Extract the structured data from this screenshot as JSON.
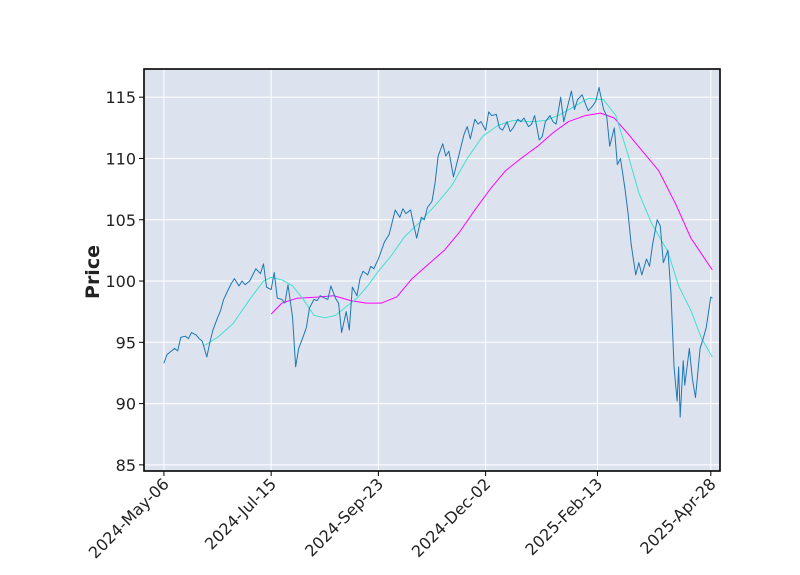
{
  "chart_data": {
    "type": "line",
    "title": "",
    "xlabel": "",
    "ylabel": "Price",
    "ylim": [
      84.5,
      117.3
    ],
    "xlim": [
      "2024-04-23",
      "2025-05-04"
    ],
    "y_ticks": [
      85,
      90,
      95,
      100,
      105,
      110,
      115
    ],
    "x_ticks": [
      {
        "date": "2024-05-06",
        "label": "2024-May-06"
      },
      {
        "date": "2024-07-15",
        "label": "2024-Jul-15"
      },
      {
        "date": "2024-09-23",
        "label": "2024-Sep-23"
      },
      {
        "date": "2024-12-02",
        "label": "2024-Dec-02"
      },
      {
        "date": "2025-02-13",
        "label": "2025-Feb-13"
      },
      {
        "date": "2025-04-28",
        "label": "2025-Apr-28"
      }
    ],
    "grid": true,
    "legend": "none",
    "colors": {
      "background": "#dde3ee",
      "grid": "#ffffff",
      "price": "#1f77b4",
      "ma_short": "#40e0d0",
      "ma_long": "#ff00ff"
    },
    "series": [
      {
        "key": "price",
        "points": [
          [
            "2024-05-06",
            93.3
          ],
          [
            "2024-05-08",
            94.0
          ],
          [
            "2024-05-10",
            94.2
          ],
          [
            "2024-05-13",
            94.5
          ],
          [
            "2024-05-15",
            94.3
          ],
          [
            "2024-05-17",
            95.4
          ],
          [
            "2024-05-20",
            95.5
          ],
          [
            "2024-05-22",
            95.3
          ],
          [
            "2024-05-24",
            95.8
          ],
          [
            "2024-05-27",
            95.6
          ],
          [
            "2024-05-29",
            95.3
          ],
          [
            "2024-05-31",
            95.1
          ],
          [
            "2024-06-03",
            93.8
          ],
          [
            "2024-06-05",
            95.0
          ],
          [
            "2024-06-07",
            96.0
          ],
          [
            "2024-06-10",
            97.0
          ],
          [
            "2024-06-12",
            97.6
          ],
          [
            "2024-06-14",
            98.5
          ],
          [
            "2024-06-17",
            99.3
          ],
          [
            "2024-06-19",
            99.8
          ],
          [
            "2024-06-21",
            100.2
          ],
          [
            "2024-06-24",
            99.6
          ],
          [
            "2024-06-26",
            100.0
          ],
          [
            "2024-06-28",
            99.7
          ],
          [
            "2024-07-01",
            100.0
          ],
          [
            "2024-07-03",
            100.5
          ],
          [
            "2024-07-05",
            101.0
          ],
          [
            "2024-07-08",
            100.6
          ],
          [
            "2024-07-10",
            101.4
          ],
          [
            "2024-07-12",
            99.5
          ],
          [
            "2024-07-15",
            99.3
          ],
          [
            "2024-07-17",
            100.7
          ],
          [
            "2024-07-19",
            98.6
          ],
          [
            "2024-07-22",
            98.5
          ],
          [
            "2024-07-24",
            98.2
          ],
          [
            "2024-07-26",
            99.7
          ],
          [
            "2024-07-29",
            97.0
          ],
          [
            "2024-07-31",
            93.0
          ],
          [
            "2024-08-02",
            94.5
          ],
          [
            "2024-08-05",
            95.5
          ],
          [
            "2024-08-07",
            96.2
          ],
          [
            "2024-08-09",
            97.8
          ],
          [
            "2024-08-12",
            98.5
          ],
          [
            "2024-08-14",
            98.4
          ],
          [
            "2024-08-16",
            98.8
          ],
          [
            "2024-08-19",
            98.6
          ],
          [
            "2024-08-21",
            98.5
          ],
          [
            "2024-08-23",
            99.6
          ],
          [
            "2024-08-26",
            98.6
          ],
          [
            "2024-08-28",
            98.2
          ],
          [
            "2024-08-30",
            95.8
          ],
          [
            "2024-09-02",
            97.5
          ],
          [
            "2024-09-04",
            96.0
          ],
          [
            "2024-09-06",
            99.5
          ],
          [
            "2024-09-09",
            98.8
          ],
          [
            "2024-09-11",
            100.2
          ],
          [
            "2024-09-13",
            100.8
          ],
          [
            "2024-09-16",
            100.5
          ],
          [
            "2024-09-18",
            101.2
          ],
          [
            "2024-09-20",
            101.0
          ],
          [
            "2024-09-23",
            101.8
          ],
          [
            "2024-09-25",
            102.5
          ],
          [
            "2024-09-27",
            103.2
          ],
          [
            "2024-09-30",
            103.8
          ],
          [
            "2024-10-02",
            104.8
          ],
          [
            "2024-10-04",
            105.8
          ],
          [
            "2024-10-07",
            105.2
          ],
          [
            "2024-10-09",
            105.9
          ],
          [
            "2024-10-11",
            105.5
          ],
          [
            "2024-10-14",
            105.8
          ],
          [
            "2024-10-16",
            104.6
          ],
          [
            "2024-10-18",
            103.5
          ],
          [
            "2024-10-21",
            105.2
          ],
          [
            "2024-10-23",
            105.0
          ],
          [
            "2024-10-25",
            106.0
          ],
          [
            "2024-10-28",
            106.5
          ],
          [
            "2024-10-30",
            108.0
          ],
          [
            "2024-11-01",
            110.2
          ],
          [
            "2024-11-04",
            111.2
          ],
          [
            "2024-11-06",
            110.2
          ],
          [
            "2024-11-08",
            110.6
          ],
          [
            "2024-11-11",
            108.5
          ],
          [
            "2024-11-13",
            109.5
          ],
          [
            "2024-11-15",
            110.5
          ],
          [
            "2024-11-18",
            112.0
          ],
          [
            "2024-11-20",
            112.6
          ],
          [
            "2024-11-22",
            111.6
          ],
          [
            "2024-11-25",
            113.2
          ],
          [
            "2024-11-27",
            112.8
          ],
          [
            "2024-11-29",
            113.0
          ],
          [
            "2024-12-02",
            112.3
          ],
          [
            "2024-12-04",
            113.8
          ],
          [
            "2024-12-06",
            113.5
          ],
          [
            "2024-12-09",
            113.6
          ],
          [
            "2024-12-11",
            112.5
          ],
          [
            "2024-12-13",
            112.3
          ],
          [
            "2024-12-16",
            113.0
          ],
          [
            "2024-12-18",
            112.2
          ],
          [
            "2024-12-20",
            112.5
          ],
          [
            "2024-12-23",
            113.2
          ],
          [
            "2024-12-25",
            113.0
          ],
          [
            "2024-12-27",
            113.3
          ],
          [
            "2024-12-30",
            112.6
          ],
          [
            "2025-01-01",
            112.8
          ],
          [
            "2025-01-03",
            113.5
          ],
          [
            "2025-01-06",
            111.5
          ],
          [
            "2025-01-08",
            111.8
          ],
          [
            "2025-01-10",
            113.0
          ],
          [
            "2025-01-13",
            113.5
          ],
          [
            "2025-01-15",
            113.0
          ],
          [
            "2025-01-17",
            112.8
          ],
          [
            "2025-01-20",
            115.0
          ],
          [
            "2025-01-22",
            113.0
          ],
          [
            "2025-01-24",
            114.0
          ],
          [
            "2025-01-27",
            115.5
          ],
          [
            "2025-01-29",
            114.0
          ],
          [
            "2025-01-31",
            114.8
          ],
          [
            "2025-02-03",
            115.2
          ],
          [
            "2025-02-05",
            114.5
          ],
          [
            "2025-02-07",
            113.9
          ],
          [
            "2025-02-10",
            114.3
          ],
          [
            "2025-02-12",
            114.7
          ],
          [
            "2025-02-14",
            115.8
          ],
          [
            "2025-02-17",
            114.0
          ],
          [
            "2025-02-19",
            113.5
          ],
          [
            "2025-02-21",
            111.0
          ],
          [
            "2025-02-24",
            112.5
          ],
          [
            "2025-02-26",
            109.5
          ],
          [
            "2025-02-28",
            110.0
          ],
          [
            "2025-03-03",
            107.5
          ],
          [
            "2025-03-05",
            105.5
          ],
          [
            "2025-03-07",
            103.0
          ],
          [
            "2025-03-10",
            100.5
          ],
          [
            "2025-03-12",
            101.5
          ],
          [
            "2025-03-14",
            100.5
          ],
          [
            "2025-03-17",
            101.8
          ],
          [
            "2025-03-19",
            101.2
          ],
          [
            "2025-03-21",
            103.0
          ],
          [
            "2025-03-24",
            105.0
          ],
          [
            "2025-03-26",
            104.5
          ],
          [
            "2025-03-28",
            101.5
          ],
          [
            "2025-03-31",
            102.5
          ],
          [
            "2025-04-02",
            99.0
          ],
          [
            "2025-04-04",
            93.0
          ],
          [
            "2025-04-06",
            90.2
          ],
          [
            "2025-04-07",
            93.0
          ],
          [
            "2025-04-08",
            88.9
          ],
          [
            "2025-04-10",
            93.5
          ],
          [
            "2025-04-11",
            91.5
          ],
          [
            "2025-04-14",
            94.5
          ],
          [
            "2025-04-16",
            92.0
          ],
          [
            "2025-04-18",
            90.5
          ],
          [
            "2025-04-21",
            94.5
          ],
          [
            "2025-04-23",
            95.3
          ],
          [
            "2025-04-25",
            96.2
          ],
          [
            "2025-04-28",
            98.7
          ],
          [
            "2025-04-29",
            98.6
          ]
        ]
      },
      {
        "key": "ma_short",
        "points": [
          [
            "2024-06-01",
            94.7
          ],
          [
            "2024-06-10",
            95.4
          ],
          [
            "2024-06-20",
            96.5
          ],
          [
            "2024-07-01",
            98.5
          ],
          [
            "2024-07-10",
            100.0
          ],
          [
            "2024-07-15",
            100.3
          ],
          [
            "2024-07-22",
            100.1
          ],
          [
            "2024-07-29",
            99.6
          ],
          [
            "2024-08-05",
            98.5
          ],
          [
            "2024-08-12",
            97.2
          ],
          [
            "2024-08-19",
            97.0
          ],
          [
            "2024-08-26",
            97.2
          ],
          [
            "2024-09-02",
            97.9
          ],
          [
            "2024-09-09",
            98.6
          ],
          [
            "2024-09-16",
            99.6
          ],
          [
            "2024-09-23",
            100.8
          ],
          [
            "2024-10-01",
            102.0
          ],
          [
            "2024-10-10",
            103.6
          ],
          [
            "2024-10-20",
            104.8
          ],
          [
            "2024-10-31",
            106.3
          ],
          [
            "2024-11-10",
            107.8
          ],
          [
            "2024-11-20",
            110.0
          ],
          [
            "2024-11-30",
            111.8
          ],
          [
            "2024-12-10",
            112.7
          ],
          [
            "2024-12-20",
            113.1
          ],
          [
            "2025-01-01",
            113.0
          ],
          [
            "2025-01-10",
            113.1
          ],
          [
            "2025-01-20",
            113.6
          ],
          [
            "2025-01-31",
            114.4
          ],
          [
            "2025-02-07",
            114.9
          ],
          [
            "2025-02-17",
            114.8
          ],
          [
            "2025-02-25",
            113.5
          ],
          [
            "2025-03-05",
            110.3
          ],
          [
            "2025-03-12",
            107.2
          ],
          [
            "2025-03-20",
            104.8
          ],
          [
            "2025-03-31",
            102.4
          ],
          [
            "2025-04-07",
            99.6
          ],
          [
            "2025-04-15",
            97.6
          ],
          [
            "2025-04-22",
            95.3
          ],
          [
            "2025-04-29",
            93.8
          ]
        ]
      },
      {
        "key": "ma_long",
        "points": [
          [
            "2024-07-15",
            97.3
          ],
          [
            "2024-07-22",
            98.2
          ],
          [
            "2024-08-01",
            98.6
          ],
          [
            "2024-08-15",
            98.7
          ],
          [
            "2024-08-25",
            98.8
          ],
          [
            "2024-09-05",
            98.4
          ],
          [
            "2024-09-15",
            98.2
          ],
          [
            "2024-09-25",
            98.2
          ],
          [
            "2024-10-05",
            98.7
          ],
          [
            "2024-10-15",
            100.2
          ],
          [
            "2024-10-25",
            101.3
          ],
          [
            "2024-11-05",
            102.5
          ],
          [
            "2024-11-15",
            104.0
          ],
          [
            "2024-11-25",
            105.8
          ],
          [
            "2024-12-05",
            107.5
          ],
          [
            "2024-12-15",
            109.0
          ],
          [
            "2024-12-25",
            110.0
          ],
          [
            "2025-01-05",
            111.0
          ],
          [
            "2025-01-15",
            112.1
          ],
          [
            "2025-01-25",
            113.0
          ],
          [
            "2025-02-05",
            113.5
          ],
          [
            "2025-02-15",
            113.7
          ],
          [
            "2025-02-24",
            113.3
          ],
          [
            "2025-03-05",
            112.0
          ],
          [
            "2025-03-15",
            110.5
          ],
          [
            "2025-03-25",
            109.0
          ],
          [
            "2025-04-05",
            106.3
          ],
          [
            "2025-04-15",
            103.5
          ],
          [
            "2025-04-29",
            100.9
          ]
        ]
      }
    ]
  }
}
